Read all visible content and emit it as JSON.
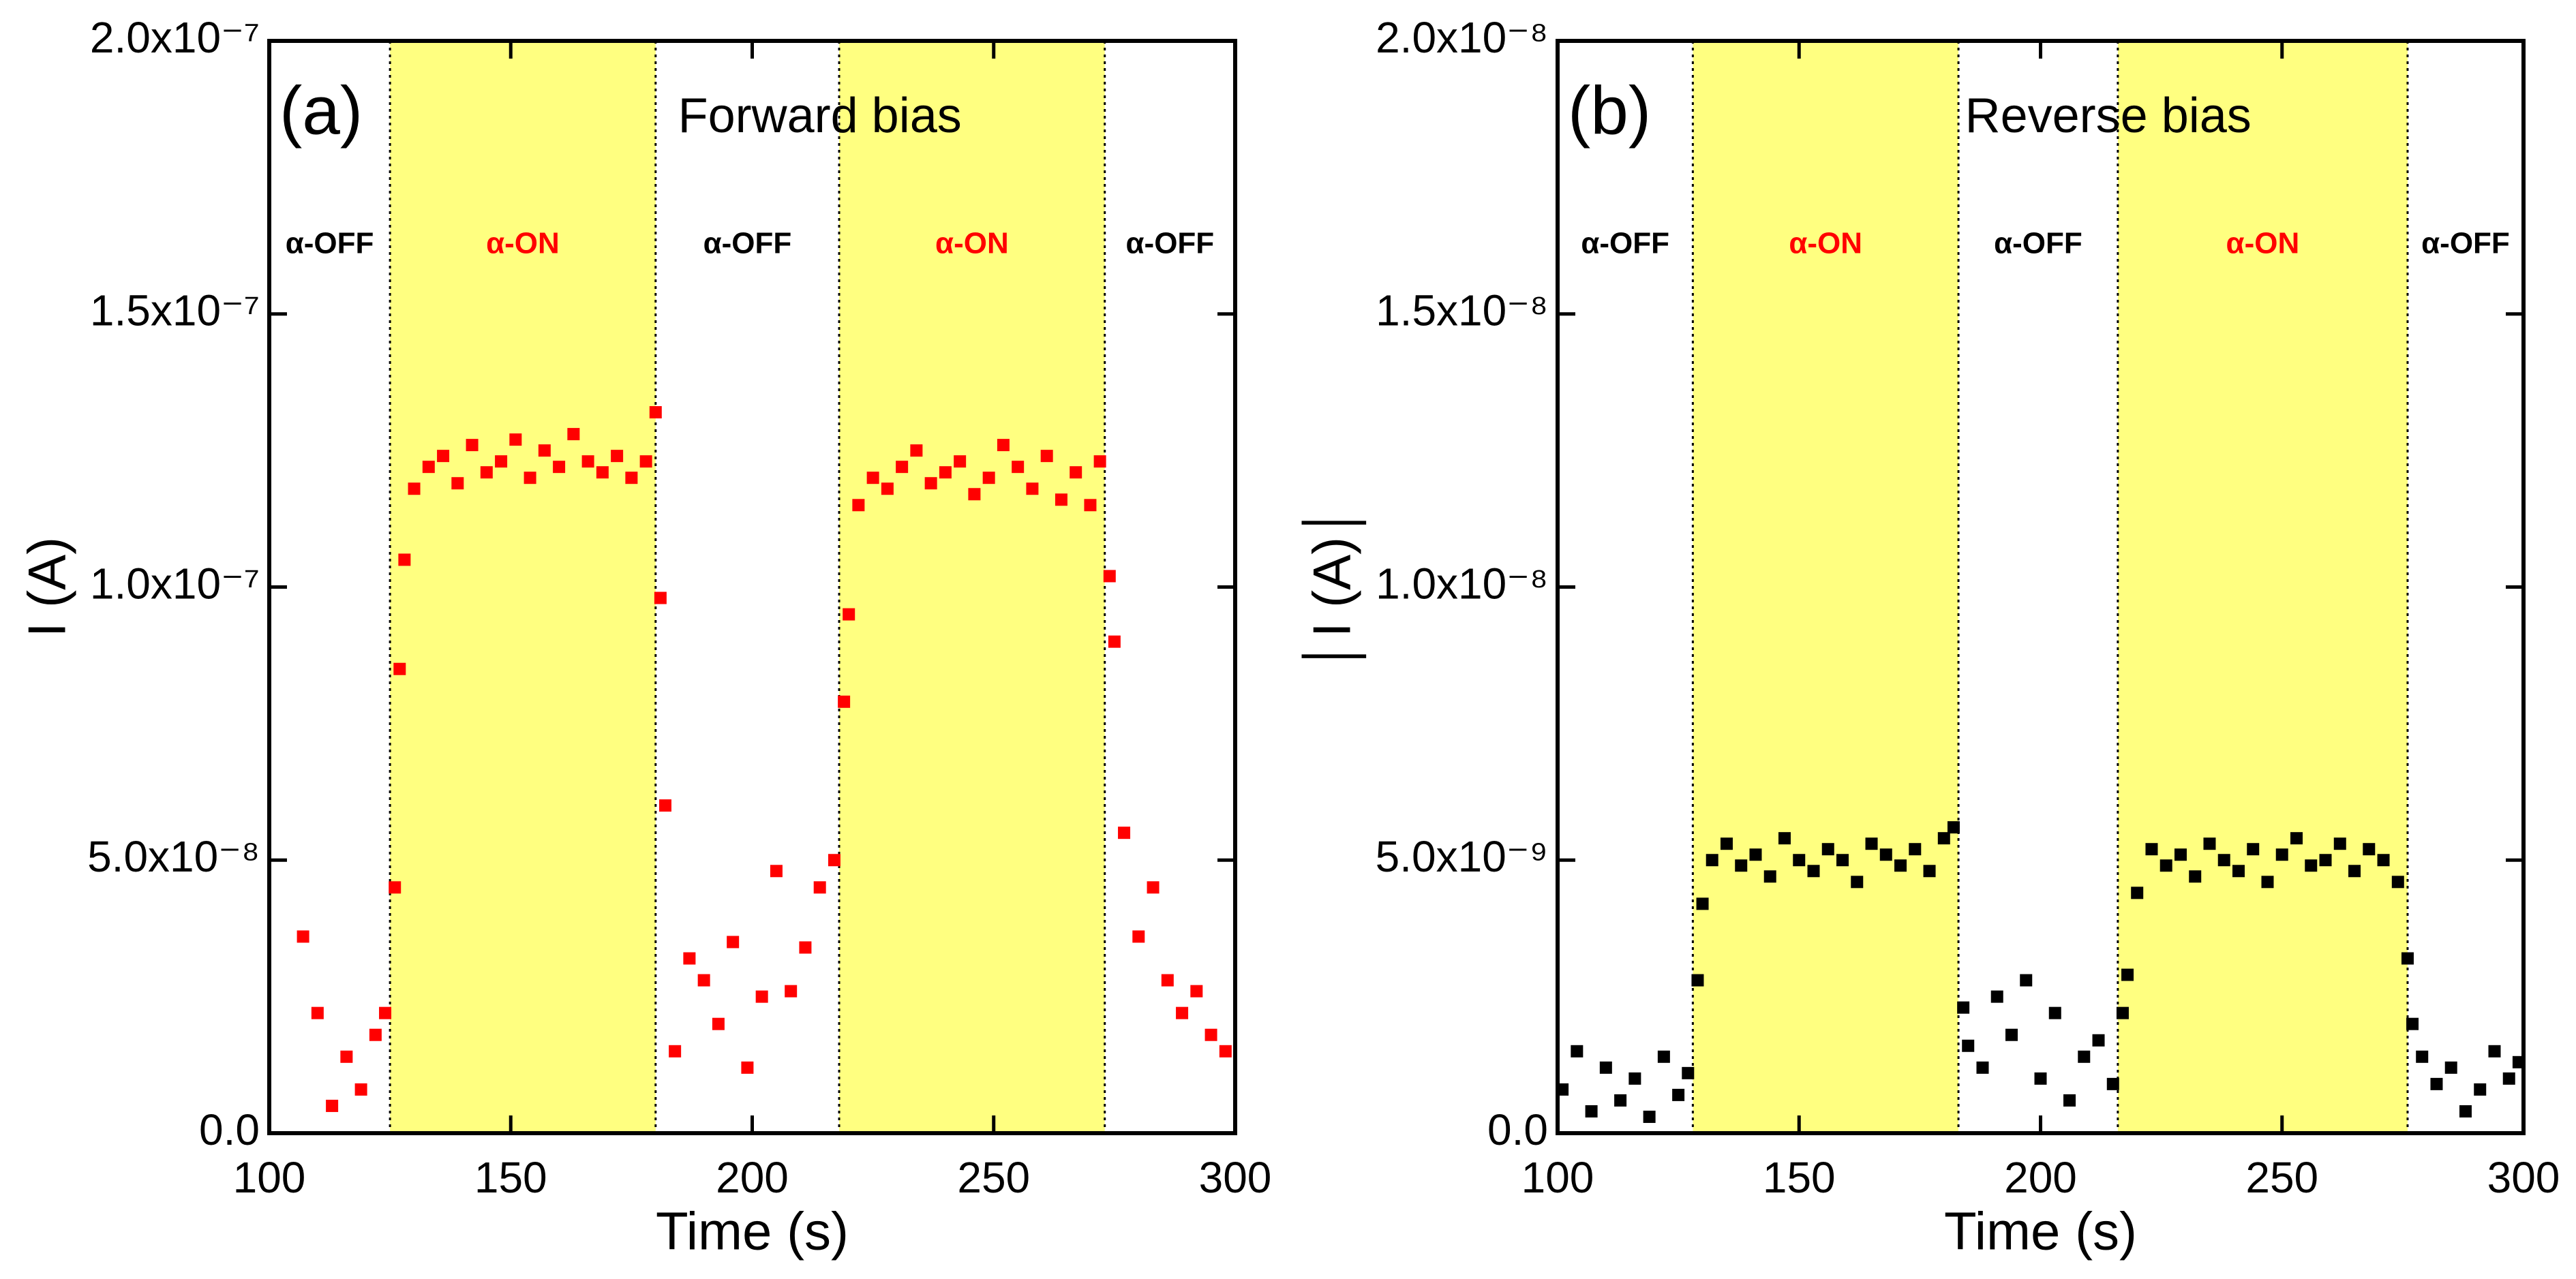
{
  "chart_data": [
    {
      "type": "scatter",
      "panel_label": "(a)",
      "title": "Forward bias",
      "xlabel": "Time (s)",
      "ylabel": "I (A)",
      "xlim": [
        100,
        300
      ],
      "xticks": [
        100,
        150,
        200,
        250,
        300
      ],
      "ylim": [
        0,
        2e-07
      ],
      "yticks": [
        {
          "value": 0,
          "label": "0.0"
        },
        {
          "value": 5e-08,
          "label": "5.0x10⁻⁸"
        },
        {
          "value": 1e-07,
          "label": "1.0x10⁻⁷"
        },
        {
          "value": 1.5e-07,
          "label": "1.5x10⁻⁷"
        },
        {
          "value": 2e-07,
          "label": "2.0x10⁻⁷"
        }
      ],
      "phases": [
        {
          "label": "α-OFF",
          "start": 100,
          "end": 125,
          "on": false
        },
        {
          "label": "α-ON",
          "start": 125,
          "end": 180,
          "on": true
        },
        {
          "label": "α-OFF",
          "start": 180,
          "end": 218,
          "on": false
        },
        {
          "label": "α-ON",
          "start": 218,
          "end": 273,
          "on": true
        },
        {
          "label": "α-OFF",
          "start": 273,
          "end": 300,
          "on": false
        }
      ],
      "shade_color": "#ffff80",
      "series": [
        {
          "color": "#ff0000",
          "x": [
            107,
            110,
            113,
            116,
            119,
            122,
            124,
            126,
            127,
            128,
            130,
            133,
            136,
            139,
            142,
            145,
            148,
            151,
            154,
            157,
            160,
            163,
            166,
            169,
            172,
            175,
            178,
            180,
            181,
            182,
            184,
            187,
            190,
            193,
            196,
            199,
            202,
            205,
            208,
            211,
            214,
            217,
            219,
            220,
            222,
            225,
            228,
            231,
            234,
            237,
            240,
            243,
            246,
            249,
            252,
            255,
            258,
            261,
            264,
            267,
            270,
            272,
            274,
            275,
            277,
            280,
            283,
            286,
            289,
            292,
            295,
            298
          ],
          "values": [
            3.6e-08,
            2.2e-08,
            5e-09,
            1.4e-08,
            8e-09,
            1.8e-08,
            2.2e-08,
            4.5e-08,
            8.5e-08,
            1.05e-07,
            1.18e-07,
            1.22e-07,
            1.24e-07,
            1.19e-07,
            1.26e-07,
            1.21e-07,
            1.23e-07,
            1.27e-07,
            1.2e-07,
            1.25e-07,
            1.22e-07,
            1.28e-07,
            1.23e-07,
            1.21e-07,
            1.24e-07,
            1.2e-07,
            1.23e-07,
            1.32e-07,
            9.8e-08,
            6e-08,
            1.5e-08,
            3.2e-08,
            2.8e-08,
            2e-08,
            3.5e-08,
            1.2e-08,
            2.5e-08,
            4.8e-08,
            2.6e-08,
            3.4e-08,
            4.5e-08,
            5e-08,
            7.9e-08,
            9.5e-08,
            1.15e-07,
            1.2e-07,
            1.18e-07,
            1.22e-07,
            1.25e-07,
            1.19e-07,
            1.21e-07,
            1.23e-07,
            1.17e-07,
            1.2e-07,
            1.26e-07,
            1.22e-07,
            1.18e-07,
            1.24e-07,
            1.16e-07,
            1.21e-07,
            1.15e-07,
            1.23e-07,
            1.02e-07,
            9e-08,
            5.5e-08,
            3.6e-08,
            4.5e-08,
            2.8e-08,
            2.2e-08,
            2.6e-08,
            1.8e-08,
            1.5e-08
          ]
        }
      ]
    },
    {
      "type": "scatter",
      "panel_label": "(b)",
      "title": "Reverse bias",
      "xlabel": "Time (s)",
      "ylabel": "│I (A)│",
      "xlim": [
        100,
        300
      ],
      "xticks": [
        100,
        150,
        200,
        250,
        300
      ],
      "ylim": [
        0,
        2e-08
      ],
      "yticks": [
        {
          "value": 0,
          "label": "0.0"
        },
        {
          "value": 5e-09,
          "label": "5.0x10⁻⁹"
        },
        {
          "value": 1e-08,
          "label": "1.0x10⁻⁸"
        },
        {
          "value": 1.5e-08,
          "label": "1.5x10⁻⁸"
        },
        {
          "value": 2e-08,
          "label": "2.0x10⁻⁸"
        }
      ],
      "phases": [
        {
          "label": "α-OFF",
          "start": 100,
          "end": 128,
          "on": false
        },
        {
          "label": "α-ON",
          "start": 128,
          "end": 183,
          "on": true
        },
        {
          "label": "α-OFF",
          "start": 183,
          "end": 216,
          "on": false
        },
        {
          "label": "α-ON",
          "start": 216,
          "end": 276,
          "on": true
        },
        {
          "label": "α-OFF",
          "start": 276,
          "end": 300,
          "on": false
        }
      ],
      "shade_color": "#ffff80",
      "series": [
        {
          "color": "#000000",
          "x": [
            101,
            104,
            107,
            110,
            113,
            116,
            119,
            122,
            125,
            127,
            129,
            130,
            132,
            135,
            138,
            141,
            144,
            147,
            150,
            153,
            156,
            159,
            162,
            165,
            168,
            171,
            174,
            177,
            180,
            182,
            184,
            185,
            188,
            191,
            194,
            197,
            200,
            203,
            206,
            209,
            212,
            215,
            217,
            218,
            220,
            223,
            226,
            229,
            232,
            235,
            238,
            241,
            244,
            247,
            250,
            253,
            256,
            259,
            262,
            265,
            268,
            271,
            274,
            276,
            277,
            279,
            282,
            285,
            288,
            291,
            294,
            297,
            299
          ],
          "values": [
            8e-10,
            1.5e-09,
            4e-10,
            1.2e-09,
            6e-10,
            1e-09,
            3e-10,
            1.4e-09,
            7e-10,
            1.1e-09,
            2.8e-09,
            4.2e-09,
            5e-09,
            5.3e-09,
            4.9e-09,
            5.1e-09,
            4.7e-09,
            5.4e-09,
            5e-09,
            4.8e-09,
            5.2e-09,
            5e-09,
            4.6e-09,
            5.3e-09,
            5.1e-09,
            4.9e-09,
            5.2e-09,
            4.8e-09,
            5.4e-09,
            5.6e-09,
            2.3e-09,
            1.6e-09,
            1.2e-09,
            2.5e-09,
            1.8e-09,
            2.8e-09,
            1e-09,
            2.2e-09,
            6e-10,
            1.4e-09,
            1.7e-09,
            9e-10,
            2.2e-09,
            2.9e-09,
            4.4e-09,
            5.2e-09,
            4.9e-09,
            5.1e-09,
            4.7e-09,
            5.3e-09,
            5e-09,
            4.8e-09,
            5.2e-09,
            4.6e-09,
            5.1e-09,
            5.4e-09,
            4.9e-09,
            5e-09,
            5.3e-09,
            4.8e-09,
            5.2e-09,
            5e-09,
            4.6e-09,
            3.2e-09,
            2e-09,
            1.4e-09,
            9e-10,
            1.2e-09,
            4e-10,
            8e-10,
            1.5e-09,
            1e-09,
            1.3e-09
          ]
        }
      ]
    }
  ]
}
